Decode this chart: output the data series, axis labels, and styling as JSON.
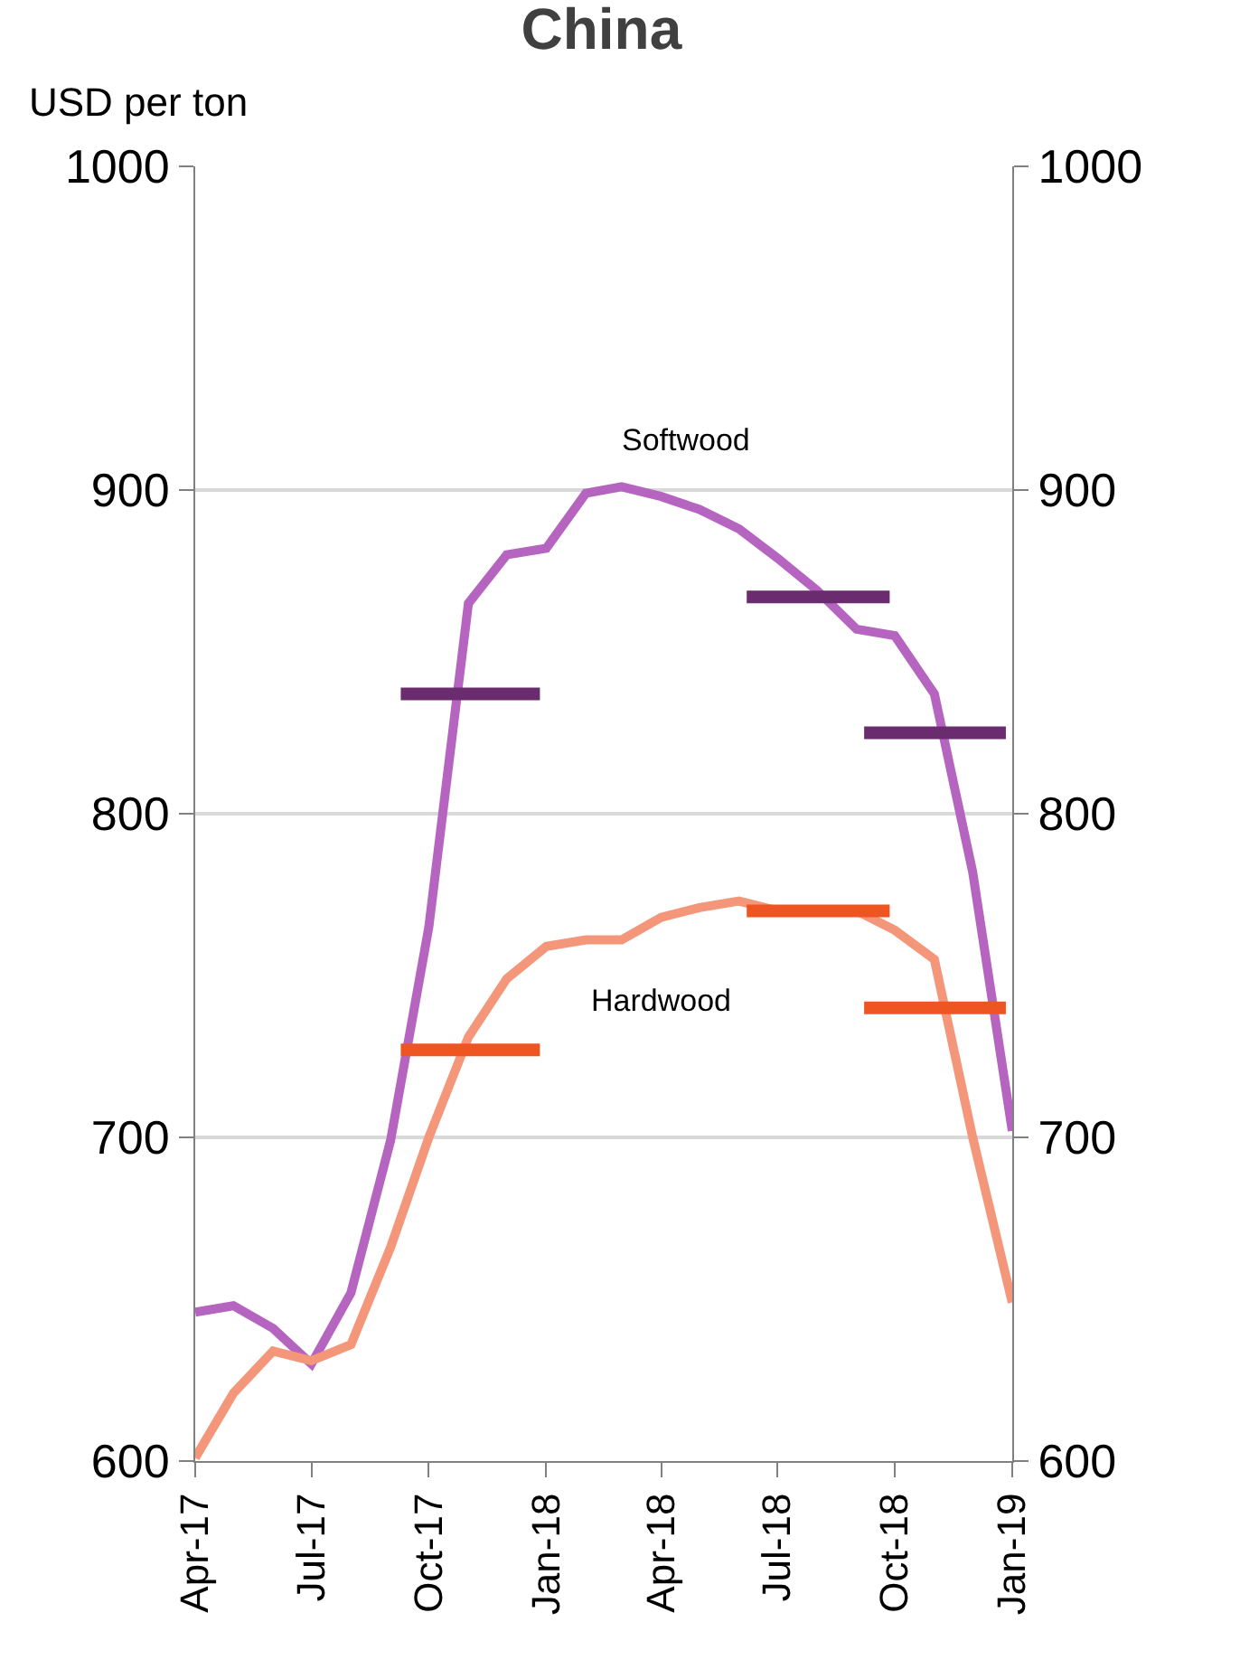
{
  "chart_data": {
    "type": "line",
    "title": "China",
    "ylabel": "USD per ton",
    "x": [
      "2017-04-01",
      "2017-05-01",
      "2017-06-01",
      "2017-07-01",
      "2017-08-01",
      "2017-09-01",
      "2017-10-01",
      "2017-11-01",
      "2017-12-01",
      "2018-01-01",
      "2018-02-01",
      "2018-03-01",
      "2018-04-01",
      "2018-05-01",
      "2018-06-01",
      "2018-07-01",
      "2018-08-01",
      "2018-09-01",
      "2018-10-01",
      "2018-11-01",
      "2018-12-01",
      "2019-01-01"
    ],
    "series": [
      {
        "name": "Softwood",
        "color": "#b565c0",
        "values": [
          646,
          648,
          641,
          630,
          652,
          699,
          765,
          865,
          880,
          882,
          899,
          901,
          898,
          894,
          888,
          879,
          869,
          857,
          855,
          837,
          782,
          702
        ]
      },
      {
        "name": "Hardwood",
        "color": "#f4967a",
        "values": [
          601,
          621,
          634,
          631,
          636,
          666,
          700,
          731,
          749,
          759,
          761,
          761,
          768,
          771,
          773,
          770,
          770,
          770,
          764,
          755,
          700,
          649
        ]
      },
      {
        "color": "#6a2c6e",
        "x": [
          "2017-09-09",
          "2017-12-27"
        ],
        "values": [
          837,
          837
        ]
      },
      {
        "color": "#6a2c6e",
        "x": [
          "2018-06-07",
          "2018-09-27"
        ],
        "values": [
          867,
          867
        ]
      },
      {
        "color": "#6a2c6e",
        "x": [
          "2018-09-07",
          "2018-12-27"
        ],
        "values": [
          825,
          825
        ]
      },
      {
        "color": "#ee5522",
        "x": [
          "2017-09-09",
          "2017-12-27"
        ],
        "values": [
          727,
          727
        ]
      },
      {
        "color": "#ee5522",
        "x": [
          "2018-06-07",
          "2018-09-27"
        ],
        "values": [
          770,
          770
        ]
      },
      {
        "color": "#ee5522",
        "x": [
          "2018-09-07",
          "2018-12-27"
        ],
        "values": [
          740,
          740
        ]
      }
    ],
    "xlim": [
      "2017-04-01",
      "2019-01-01"
    ],
    "xticks": [
      {
        "value": "2017-04-01",
        "label": "Apr-17"
      },
      {
        "value": "2017-07-01",
        "label": "Jul-17"
      },
      {
        "value": "2017-10-01",
        "label": "Oct-17"
      },
      {
        "value": "2018-01-01",
        "label": "Jan-18"
      },
      {
        "value": "2018-04-01",
        "label": "Apr-18"
      },
      {
        "value": "2018-07-01",
        "label": "Jul-18"
      },
      {
        "value": "2018-10-01",
        "label": "Oct-18"
      },
      {
        "value": "2019-01-01",
        "label": "Jan-19"
      }
    ],
    "ylim": [
      600,
      1000
    ],
    "yticks": [
      600,
      700,
      800,
      900,
      1000
    ],
    "y2lim": [
      600,
      1000
    ],
    "y2ticks": [
      600,
      700,
      800,
      900,
      1000
    ],
    "grid": "y",
    "legend": false,
    "line_style": "solid",
    "marker": "none"
  }
}
